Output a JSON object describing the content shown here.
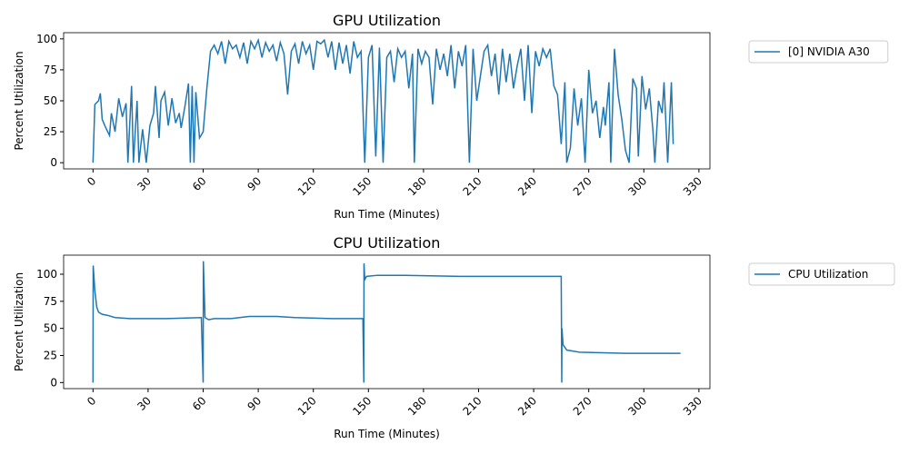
{
  "chart_data": [
    {
      "type": "line",
      "title": "GPU Utilization",
      "x_label": "Run Time (Minutes)",
      "y_label": "Percent Utilization",
      "xlim": [
        -16,
        336
      ],
      "ylim": [
        -5,
        105
      ],
      "xticks": [
        0,
        30,
        60,
        90,
        120,
        150,
        180,
        210,
        240,
        270,
        300,
        330
      ],
      "yticks": [
        0,
        25,
        50,
        75,
        100
      ],
      "legend": "outside-right",
      "series": [
        {
          "name": "[0] NVIDIA A30",
          "color": "#1f77b4",
          "x": [
            0,
            1,
            3,
            4,
            5,
            7,
            9,
            10,
            12,
            14,
            16,
            18,
            19,
            21,
            22,
            24,
            25,
            27,
            29,
            31,
            33,
            34,
            36,
            37,
            39,
            41,
            43,
            45,
            47,
            48,
            50,
            52,
            53,
            54,
            55,
            56,
            58,
            60,
            62,
            64,
            66,
            68,
            70,
            72,
            74,
            76,
            78,
            80,
            82,
            84,
            86,
            88,
            90,
            92,
            94,
            96,
            98,
            100,
            102,
            104,
            106,
            108,
            110,
            112,
            114,
            116,
            118,
            120,
            122,
            124,
            126,
            128,
            130,
            132,
            134,
            136,
            138,
            140,
            142,
            144,
            146,
            148,
            150,
            152,
            154,
            156,
            158,
            160,
            162,
            164,
            166,
            168,
            170,
            172,
            174,
            175,
            177,
            179,
            181,
            183,
            185,
            187,
            189,
            191,
            193,
            195,
            197,
            199,
            201,
            203,
            205,
            207,
            209,
            211,
            213,
            215,
            217,
            219,
            221,
            223,
            225,
            227,
            229,
            231,
            233,
            235,
            237,
            239,
            241,
            243,
            245,
            247,
            249,
            251,
            253,
            255,
            257,
            258,
            260,
            262,
            264,
            266,
            268,
            270,
            272,
            274,
            276,
            278,
            279,
            281,
            282,
            284,
            286,
            288,
            290,
            292,
            294,
            296,
            297,
            299,
            301,
            303,
            305,
            306,
            308,
            310,
            311,
            313,
            315,
            316
          ],
          "values": [
            0,
            47,
            50,
            56,
            35,
            28,
            22,
            40,
            25,
            52,
            37,
            48,
            0,
            62,
            0,
            50,
            0,
            27,
            0,
            30,
            40,
            62,
            20,
            50,
            57,
            30,
            52,
            32,
            40,
            28,
            45,
            64,
            0,
            62,
            0,
            57,
            20,
            25,
            60,
            90,
            95,
            88,
            98,
            80,
            98,
            92,
            95,
            85,
            97,
            80,
            98,
            92,
            99,
            85,
            97,
            90,
            95,
            82,
            97,
            88,
            55,
            90,
            96,
            80,
            98,
            88,
            95,
            75,
            98,
            96,
            99,
            85,
            98,
            75,
            97,
            80,
            95,
            72,
            98,
            85,
            90,
            0,
            85,
            95,
            5,
            93,
            0,
            85,
            90,
            65,
            92,
            85,
            90,
            60,
            88,
            0,
            92,
            80,
            90,
            85,
            47,
            92,
            75,
            88,
            70,
            95,
            60,
            90,
            78,
            95,
            0,
            92,
            50,
            70,
            90,
            95,
            70,
            88,
            55,
            92,
            65,
            88,
            60,
            78,
            92,
            50,
            95,
            40,
            90,
            78,
            92,
            85,
            92,
            62,
            55,
            15,
            65,
            0,
            12,
            60,
            30,
            52,
            0,
            75,
            40,
            50,
            20,
            45,
            30,
            65,
            0,
            92,
            55,
            35,
            10,
            0,
            68,
            60,
            5,
            70,
            43,
            60,
            25,
            0,
            50,
            40,
            65,
            0,
            65,
            15
          ]
        }
      ]
    },
    {
      "type": "line",
      "title": "CPU Utilization",
      "x_label": "Run Time (Minutes)",
      "y_label": "Percent Utilization",
      "xlim": [
        -16,
        336
      ],
      "ylim": [
        -5.6,
        117.6
      ],
      "xticks": [
        0,
        30,
        60,
        90,
        120,
        150,
        180,
        210,
        240,
        270,
        300,
        330
      ],
      "yticks": [
        0,
        25,
        50,
        75,
        100
      ],
      "legend": "outside-right",
      "series": [
        {
          "name": "CPU Utilization",
          "color": "#1f77b4",
          "x": [
            0,
            0.1,
            1,
            2,
            3,
            5,
            8,
            12,
            20,
            40,
            59,
            60,
            60.1,
            61,
            63,
            66,
            75,
            85,
            100,
            110,
            130,
            147,
            147.5,
            147.6,
            148,
            149,
            155,
            170,
            200,
            230,
            255,
            255.3,
            255.4,
            256,
            258,
            265,
            290,
            320
          ],
          "values": [
            0,
            108,
            85,
            70,
            65,
            63,
            62,
            60,
            59,
            59,
            60,
            0,
            112,
            60,
            58,
            59,
            59,
            61,
            61,
            60,
            59,
            59,
            0,
            110,
            95,
            98,
            99,
            99,
            98,
            98,
            98,
            0,
            50,
            35,
            30,
            28,
            27,
            27
          ]
        }
      ]
    }
  ]
}
